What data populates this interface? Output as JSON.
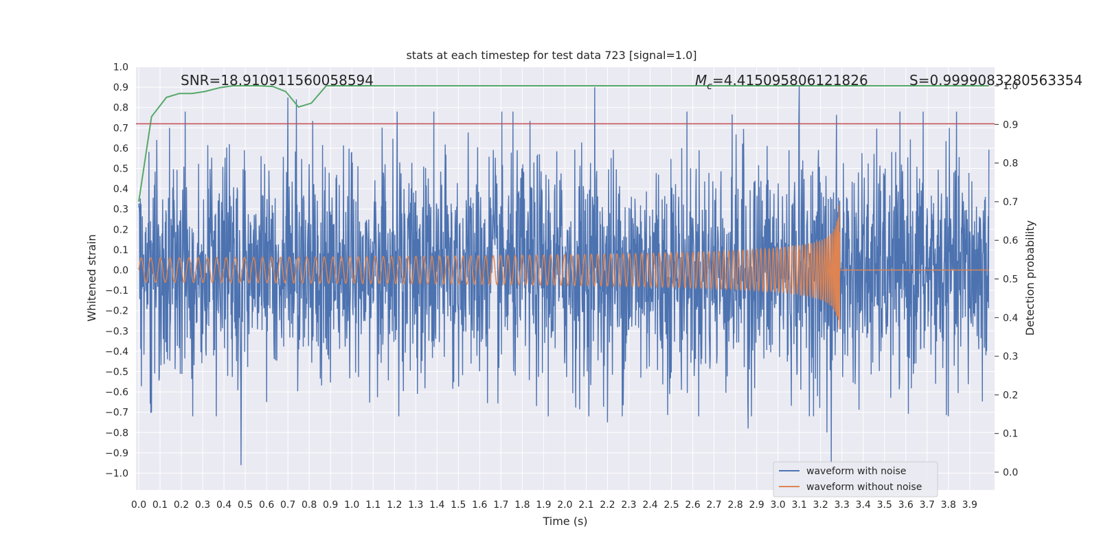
{
  "chart_data": {
    "type": "line",
    "title": "stats at each timestep for test data 723 [signal=1.0]",
    "xlabel": "Time (s)",
    "ylabel": "Whitened strain",
    "y2label": "Detection probability",
    "xlim": [
      0.0,
      3.99
    ],
    "ylim": [
      -1.1,
      1.0
    ],
    "y2lim": [
      -0.05,
      1.04
    ],
    "x_ticks": [
      "0.0",
      "0.1",
      "0.2",
      "0.3",
      "0.4",
      "0.5",
      "0.6",
      "0.7",
      "0.8",
      "0.9",
      "1.0",
      "1.1",
      "1.2",
      "1.3",
      "1.4",
      "1.5",
      "1.6",
      "1.7",
      "1.8",
      "1.9",
      "2.0",
      "2.1",
      "2.2",
      "2.3",
      "2.4",
      "2.5",
      "2.6",
      "2.7",
      "2.8",
      "2.9",
      "3.0",
      "3.1",
      "3.2",
      "3.3",
      "3.4",
      "3.5",
      "3.6",
      "3.7",
      "3.8",
      "3.9"
    ],
    "y_ticks": [
      "1.0",
      "0.9",
      "0.8",
      "0.7",
      "0.6",
      "0.5",
      "0.4",
      "0.3",
      "0.2",
      "0.1",
      "0.0",
      "−0.1",
      "−0.2",
      "−0.3",
      "−0.4",
      "−0.5",
      "−0.6",
      "−0.7",
      "−0.8",
      "−0.9",
      "−1.0"
    ],
    "y2_ticks": [
      "1.0",
      "0.9",
      "0.8",
      "0.7",
      "0.6",
      "0.5",
      "0.4",
      "0.3",
      "0.2",
      "0.1",
      "0.0"
    ],
    "grid": true,
    "legend_position": "lower-right",
    "legend": [
      "waveform with noise",
      "waveform without noise"
    ],
    "annotations": {
      "snr": "SNR=18.910911560058594",
      "mc_symbol": "M",
      "mc_sub": "c",
      "mc_value": "=4.415095806121826",
      "s": "S=0.9999083280563354"
    },
    "threshold": {
      "value": 0.72,
      "axis": "left",
      "color": "#c44e52"
    },
    "series": [
      {
        "name": "waveform with noise",
        "axis": "left",
        "color": "#4c72b0",
        "description_noise_amplitude": 0.28,
        "peaks": [
          [
            0.48,
            -0.96
          ],
          [
            0.7,
            0.85
          ],
          [
            0.74,
            0.84
          ],
          [
            2.14,
            0.9
          ],
          [
            3.1,
            0.91
          ],
          [
            3.25,
            -0.95
          ],
          [
            3.23,
            -0.8
          ],
          [
            2.86,
            -0.78
          ],
          [
            0.06,
            -0.7
          ],
          [
            2.2,
            -0.75
          ]
        ]
      },
      {
        "name": "waveform without noise",
        "axis": "left",
        "color": "#dd8452",
        "merger_time": 3.29,
        "amplitude_start": 0.06,
        "amplitude_peak": 0.4
      },
      {
        "name": "detection probability",
        "axis": "right",
        "color": "#55a868",
        "x": [
          0.0,
          0.06,
          0.13,
          0.19,
          0.25,
          0.31,
          0.38,
          0.44,
          0.5,
          0.56,
          0.63,
          0.69,
          0.75,
          0.81,
          0.88,
          0.94,
          1.0,
          2.0,
          3.0,
          3.99
        ],
        "values": [
          0.7,
          0.92,
          0.97,
          0.98,
          0.98,
          0.985,
          0.995,
          1.0,
          1.0,
          1.0,
          0.998,
          0.985,
          0.945,
          0.955,
          1.0,
          1.0,
          1.0,
          1.0,
          1.0,
          1.0
        ]
      }
    ]
  }
}
